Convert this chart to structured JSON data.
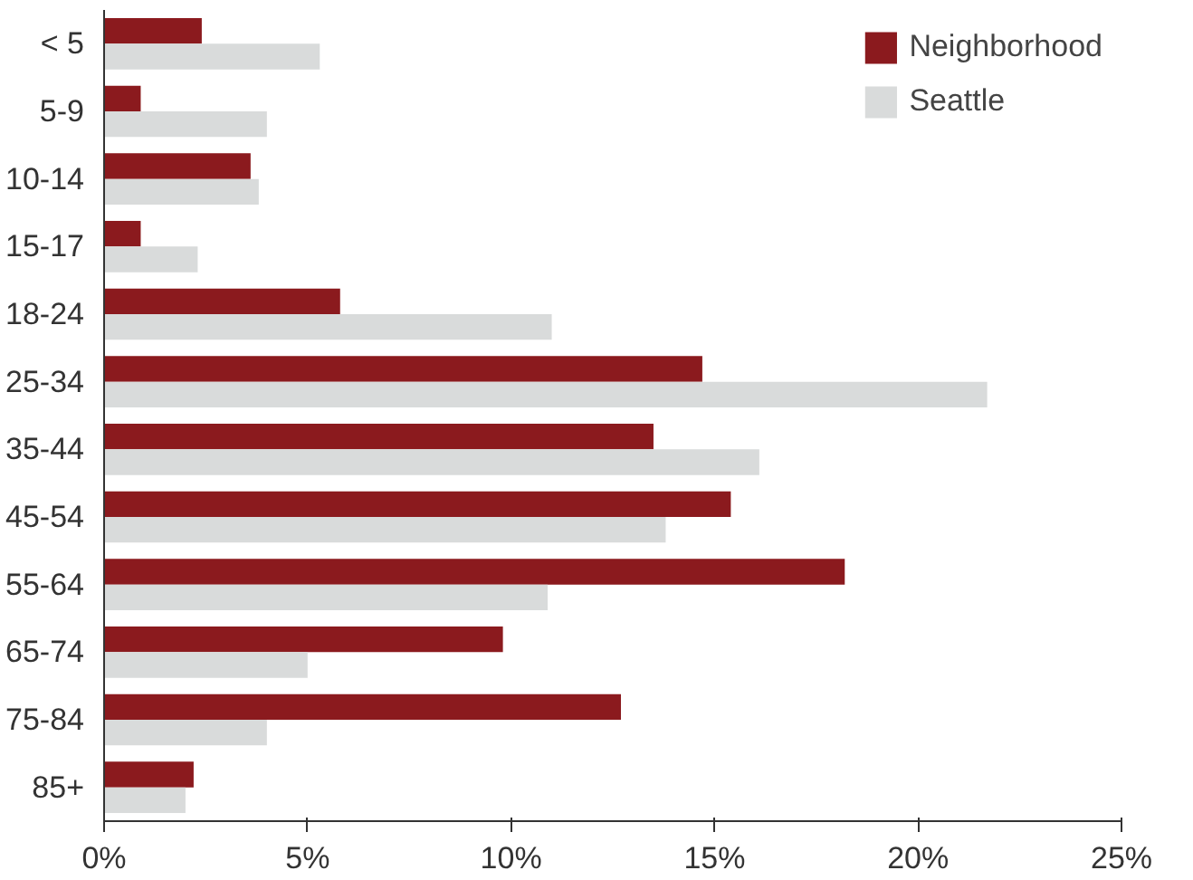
{
  "chart_data": {
    "type": "bar",
    "orientation": "horizontal",
    "categories": [
      "< 5",
      "5-9",
      "10-14",
      "15-17",
      "18-24",
      "25-34",
      "35-44",
      "45-54",
      "55-64",
      "65-74",
      "75-84",
      "85+"
    ],
    "series": [
      {
        "name": "Neighborhood",
        "color": "#8b1a1e",
        "values": [
          2.4,
          0.9,
          3.6,
          0.9,
          5.8,
          14.7,
          13.5,
          15.4,
          18.2,
          9.8,
          12.7,
          2.2
        ]
      },
      {
        "name": "Seattle",
        "color": "#d9dbdb",
        "values": [
          5.3,
          4.0,
          3.8,
          2.3,
          11.0,
          21.7,
          16.1,
          13.8,
          10.9,
          5.0,
          4.0,
          2.0
        ]
      }
    ],
    "xlim": [
      0,
      25
    ],
    "xticks": [
      {
        "value": 0,
        "label": "0%"
      },
      {
        "value": 5,
        "label": "5%"
      },
      {
        "value": 10,
        "label": "10%"
      },
      {
        "value": 15,
        "label": "15%"
      },
      {
        "value": 20,
        "label": "20%"
      },
      {
        "value": 25,
        "label": "25%"
      }
    ],
    "grid": false,
    "legend": "top right"
  }
}
